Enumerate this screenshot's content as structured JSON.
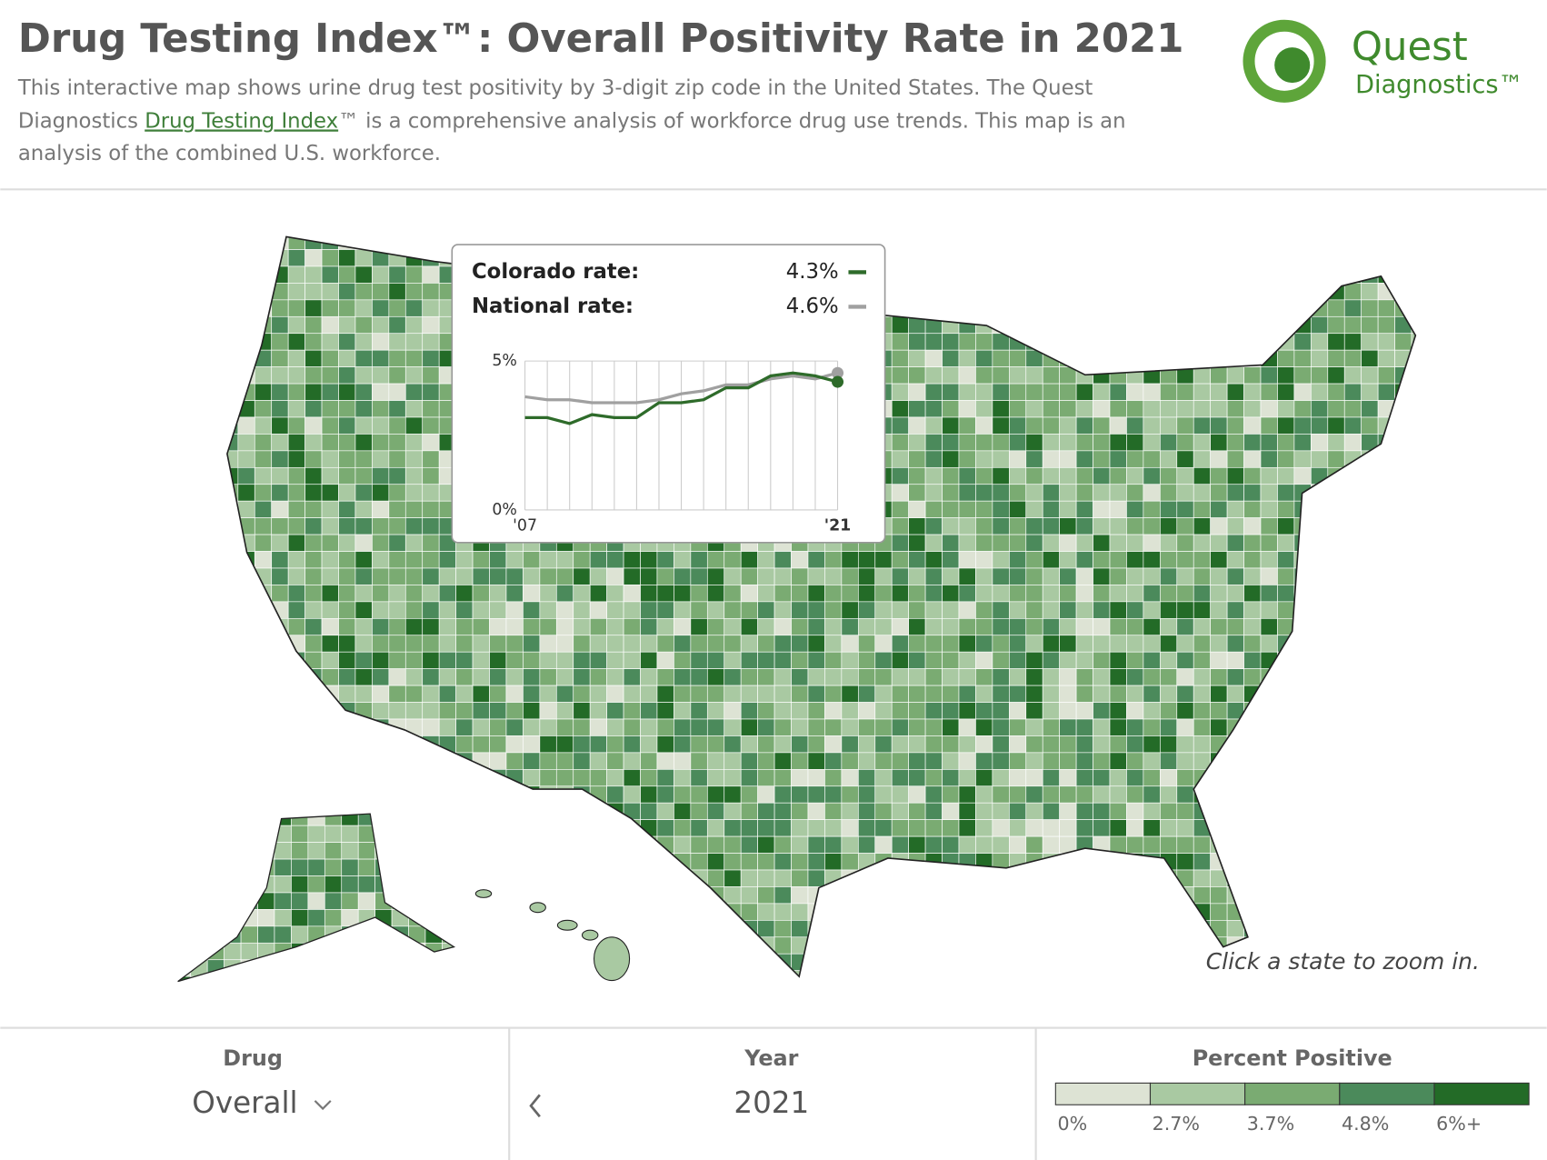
{
  "header": {
    "title": "Drug Testing Index™: Overall Positivity Rate in 2021",
    "description": {
      "line1": "This interactive map shows urine drug test positivity by 3-digit zip code in the United States. The Quest",
      "line2_before": "Diagnostics ",
      "link": "Drug Testing Index",
      "line2_after": "™ is a comprehensive analysis of workforce drug use trends. This map is an",
      "line3": "analysis of the combined U.S. workforce."
    }
  },
  "logo": {
    "name": "Quest",
    "sub": "Diagnostics™"
  },
  "chart_data": {
    "type": "line",
    "x": [
      2007,
      2008,
      2009,
      2010,
      2011,
      2012,
      2013,
      2014,
      2015,
      2016,
      2017,
      2018,
      2019,
      2020,
      2021
    ],
    "xlim": [
      2007,
      2021
    ],
    "xticks": [
      {
        "value": 2007,
        "label": "'07"
      },
      {
        "value": 2021,
        "label": "'21"
      }
    ],
    "ylim": [
      0,
      5
    ],
    "yticks": [
      {
        "value": 0,
        "label": "0%"
      },
      {
        "value": 5,
        "label": "5%"
      }
    ],
    "grid": true,
    "series": [
      {
        "name": "Colorado rate:",
        "color": "#2e6b2a",
        "rate": {
          "value": 4.3,
          "label": "4.3%"
        },
        "values": [
          3.1,
          3.1,
          2.9,
          3.2,
          3.1,
          3.1,
          3.6,
          3.6,
          3.7,
          4.1,
          4.1,
          4.5,
          4.6,
          4.5,
          4.3
        ]
      },
      {
        "name": "National rate:",
        "color": "#a0a0a0",
        "rate": {
          "value": 4.6,
          "label": "4.6%"
        },
        "values": [
          3.8,
          3.7,
          3.7,
          3.6,
          3.6,
          3.6,
          3.7,
          3.9,
          4.0,
          4.2,
          4.2,
          4.4,
          4.5,
          4.4,
          4.6
        ]
      }
    ]
  },
  "hint": "Click a state to zoom in.",
  "controls": {
    "drug_label": "Drug",
    "drug_value": "Overall",
    "year_label": "Year",
    "year_value": "2021"
  },
  "legend": {
    "title": "Percent Positive",
    "thresholds": [
      {
        "value": 0,
        "label": "0%"
      },
      {
        "value": 2.7,
        "label": "2.7%"
      },
      {
        "value": 3.7,
        "label": "3.7%"
      },
      {
        "value": 4.8,
        "label": "4.8%"
      },
      {
        "value": 6,
        "label": "6%+"
      }
    ],
    "colors": [
      "#dde3d4",
      "#a9c9a2",
      "#7aab72",
      "#4b8a5b",
      "#236b27"
    ]
  }
}
